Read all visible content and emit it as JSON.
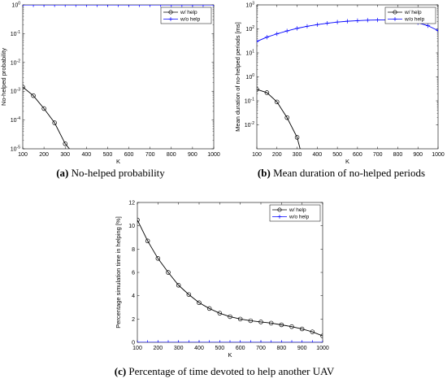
{
  "chart_data": [
    {
      "type": "line",
      "panel": "a",
      "caption_tag": "(a)",
      "caption_text": "No-helped probability",
      "xlabel": "K",
      "ylabel": "No-helped probability",
      "yscale": "log",
      "xlim": [
        100,
        1000
      ],
      "ylim": [
        1e-05,
        1
      ],
      "x_ticks": [
        100,
        200,
        300,
        400,
        500,
        600,
        700,
        800,
        900,
        1000
      ],
      "y_ticks": [
        {
          "value": 1e-05,
          "base": "10",
          "exp": "-5"
        },
        {
          "value": 0.0001,
          "base": "10",
          "exp": "-4"
        },
        {
          "value": 0.001,
          "base": "10",
          "exp": "-3"
        },
        {
          "value": 0.01,
          "base": "10",
          "exp": "-2"
        },
        {
          "value": 0.1,
          "base": "10",
          "exp": "-1"
        },
        {
          "value": 1,
          "base": "10",
          "exp": "0"
        }
      ],
      "legend_placement": "top-right",
      "series": [
        {
          "name": "w/ help",
          "color": "#000000",
          "marker": "circle",
          "x": [
            100,
            150,
            200,
            250,
            300,
            320
          ],
          "y": [
            0.0014,
            0.0007,
            0.00025,
            8e-05,
            1.5e-05,
            1e-05
          ]
        },
        {
          "name": "w/o help",
          "color": "#0000ff",
          "marker": "plus",
          "x": [
            100,
            150,
            200,
            250,
            300,
            350,
            400,
            450,
            500,
            550,
            600,
            650,
            700,
            750,
            800,
            850,
            900,
            950,
            1000
          ],
          "y": [
            1,
            1,
            1,
            1,
            1,
            1,
            1,
            1,
            1,
            1,
            1,
            1,
            1,
            1,
            1,
            1,
            1,
            1,
            1
          ]
        }
      ]
    },
    {
      "type": "line",
      "panel": "b",
      "caption_tag": "(b)",
      "caption_text": "Mean duration of no-helped periods",
      "xlabel": "K",
      "ylabel": "Mean duration of no-helped periods [ms]",
      "yscale": "log",
      "xlim": [
        100,
        1000
      ],
      "ylim": [
        0.001,
        1000
      ],
      "x_ticks": [
        100,
        200,
        300,
        400,
        500,
        600,
        700,
        800,
        900,
        1000
      ],
      "y_ticks": [
        {
          "value": 0.01,
          "base": "10",
          "exp": "-2"
        },
        {
          "value": 0.1,
          "base": "10",
          "exp": "-1"
        },
        {
          "value": 1,
          "base": "10",
          "exp": "0"
        },
        {
          "value": 10,
          "base": "10",
          "exp": "1"
        },
        {
          "value": 100,
          "base": "10",
          "exp": "2"
        },
        {
          "value": 1000,
          "base": "10",
          "exp": "3"
        }
      ],
      "legend_placement": "top-right",
      "series": [
        {
          "name": "w/ help",
          "color": "#000000",
          "marker": "circle",
          "x": [
            100,
            150,
            200,
            250,
            300,
            315
          ],
          "y": [
            0.3,
            0.22,
            0.09,
            0.02,
            0.003,
            0.001
          ]
        },
        {
          "name": "w/o help",
          "color": "#0000ff",
          "marker": "plus",
          "x": [
            100,
            150,
            200,
            250,
            300,
            350,
            400,
            450,
            500,
            550,
            600,
            650,
            700,
            750,
            800,
            850,
            900,
            950,
            1000
          ],
          "y": [
            30,
            45,
            62,
            82,
            105,
            128,
            150,
            172,
            192,
            208,
            220,
            230,
            235,
            235,
            228,
            210,
            180,
            135,
            85
          ]
        }
      ]
    },
    {
      "type": "line",
      "panel": "c",
      "caption_tag": "(c)",
      "caption_text": "Percentage of time devoted to help another UAV",
      "xlabel": "K",
      "ylabel": "Percentage simulation time in helping [%]",
      "yscale": "linear",
      "xlim": [
        100,
        1000
      ],
      "ylim": [
        0,
        12
      ],
      "x_ticks": [
        100,
        200,
        300,
        400,
        500,
        600,
        700,
        800,
        900,
        1000
      ],
      "y_ticks": [
        {
          "value": 0,
          "label": "0"
        },
        {
          "value": 2,
          "label": "2"
        },
        {
          "value": 4,
          "label": "4"
        },
        {
          "value": 6,
          "label": "6"
        },
        {
          "value": 8,
          "label": "8"
        },
        {
          "value": 10,
          "label": "10"
        },
        {
          "value": 12,
          "label": "12"
        }
      ],
      "legend_placement": "top-right",
      "series": [
        {
          "name": "w/ help",
          "color": "#000000",
          "marker": "circle",
          "x": [
            100,
            150,
            200,
            250,
            300,
            350,
            400,
            450,
            500,
            550,
            600,
            650,
            700,
            750,
            800,
            850,
            900,
            950,
            1000
          ],
          "y": [
            10.5,
            8.7,
            7.2,
            6.0,
            4.9,
            4.1,
            3.4,
            2.9,
            2.5,
            2.2,
            2.0,
            1.85,
            1.75,
            1.65,
            1.5,
            1.35,
            1.15,
            0.9,
            0.55
          ]
        },
        {
          "name": "w/o help",
          "color": "#0000ff",
          "marker": "plus",
          "x": [
            100,
            150,
            200,
            250,
            300,
            350,
            400,
            450,
            500,
            550,
            600,
            650,
            700,
            750,
            800,
            850,
            900,
            950,
            1000
          ],
          "y": [
            0,
            0,
            0,
            0,
            0,
            0,
            0,
            0,
            0,
            0,
            0,
            0,
            0,
            0,
            0,
            0,
            0,
            0,
            0
          ]
        }
      ]
    }
  ]
}
